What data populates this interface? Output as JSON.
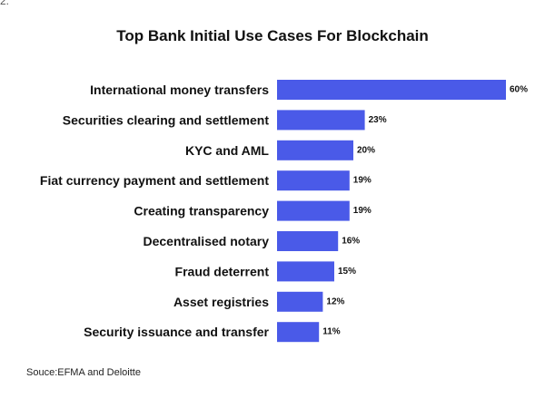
{
  "corner_text": "2.",
  "chart_data": {
    "type": "bar",
    "orientation": "horizontal",
    "title": "Top Bank Initial Use Cases For Blockchain",
    "categories": [
      "International money transfers",
      "Securities clearing and settlement",
      "KYC and AML",
      "Fiat currency payment and settlement",
      "Creating transparency",
      "Decentralised notary",
      "Fraud deterrent",
      "Asset registries",
      "Security issuance and transfer"
    ],
    "values": [
      60,
      23,
      20,
      19,
      19,
      16,
      15,
      12,
      11
    ],
    "value_suffix": "%",
    "xlim": [
      0,
      60
    ],
    "bar_color": "#4a5ae8",
    "grid": false,
    "legend": "none"
  },
  "source": "Souce:EFMA and Deloitte"
}
